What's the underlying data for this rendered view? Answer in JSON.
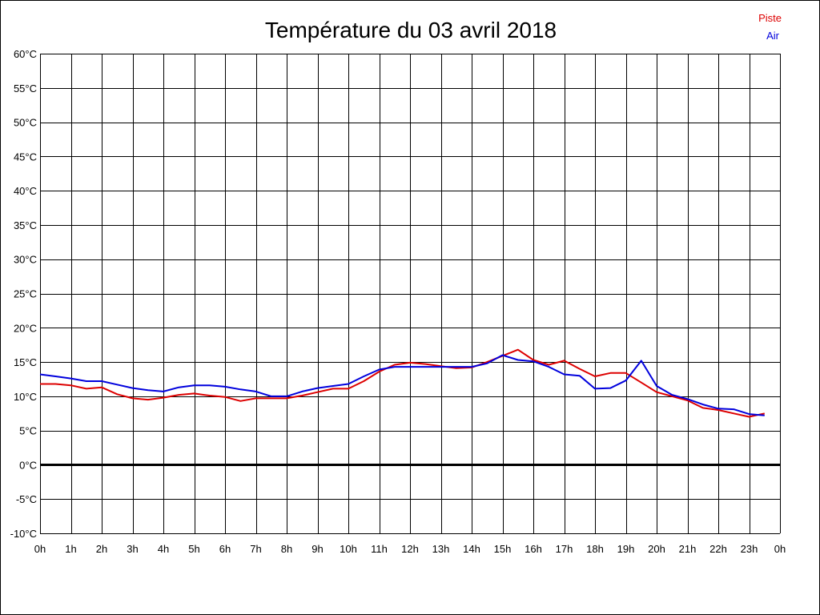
{
  "chart_data": {
    "type": "line",
    "title": "Température du 03 avril 2018",
    "xlabel": "",
    "ylabel": "",
    "x_ticks": [
      "0h",
      "1h",
      "2h",
      "3h",
      "4h",
      "5h",
      "6h",
      "7h",
      "8h",
      "9h",
      "10h",
      "11h",
      "12h",
      "13h",
      "14h",
      "15h",
      "16h",
      "17h",
      "18h",
      "19h",
      "20h",
      "21h",
      "22h",
      "23h",
      "0h"
    ],
    "y_ticks": [
      "60°C",
      "55°C",
      "50°C",
      "45°C",
      "40°C",
      "35°C",
      "30°C",
      "25°C",
      "20°C",
      "15°C",
      "10°C",
      "5°C",
      "0°C",
      "-5°C",
      "-10°C"
    ],
    "xlim": [
      0,
      24
    ],
    "ylim": [
      -10,
      60
    ],
    "grid": true,
    "legend_position": "top-right",
    "x": [
      0,
      0.5,
      1,
      1.5,
      2,
      2.5,
      3,
      3.5,
      4,
      4.5,
      5,
      5.5,
      6,
      6.5,
      7,
      7.5,
      8,
      8.5,
      9,
      9.5,
      10,
      10.5,
      11,
      11.5,
      12,
      12.5,
      13,
      13.5,
      14,
      14.5,
      15,
      15.5,
      16,
      16.5,
      17,
      17.5,
      18,
      18.5,
      19,
      19.5,
      20,
      20.5,
      21,
      21.5,
      22,
      22.5,
      23,
      23.5
    ],
    "series": [
      {
        "name": "Piste",
        "color": "#dd0000",
        "values": [
          11.8,
          11.8,
          11.6,
          11.1,
          11.3,
          10.3,
          9.7,
          9.5,
          9.8,
          10.2,
          10.4,
          10.1,
          9.9,
          9.3,
          9.7,
          9.7,
          9.7,
          10.1,
          10.6,
          11.1,
          11.1,
          12.2,
          13.6,
          14.6,
          14.9,
          14.7,
          14.4,
          14.1,
          14.2,
          15.0,
          15.9,
          16.8,
          15.3,
          14.6,
          15.2,
          14.0,
          12.9,
          13.4,
          13.4,
          12.0,
          10.6,
          10.0,
          9.4,
          8.3,
          8.0,
          7.5,
          7.0,
          7.5
        ]
      },
      {
        "name": "Air",
        "color": "#0000dd",
        "values": [
          13.2,
          12.9,
          12.6,
          12.2,
          12.2,
          11.7,
          11.2,
          10.9,
          10.7,
          11.3,
          11.6,
          11.6,
          11.4,
          11.0,
          10.7,
          10.0,
          10.0,
          10.7,
          11.2,
          11.5,
          11.8,
          12.9,
          13.9,
          14.3,
          14.3,
          14.3,
          14.3,
          14.3,
          14.3,
          14.8,
          16.0,
          15.3,
          15.1,
          14.3,
          13.2,
          13.0,
          11.1,
          11.2,
          12.3,
          15.2,
          11.5,
          10.2,
          9.6,
          8.8,
          8.2,
          8.1,
          7.4,
          7.2
        ]
      }
    ]
  }
}
